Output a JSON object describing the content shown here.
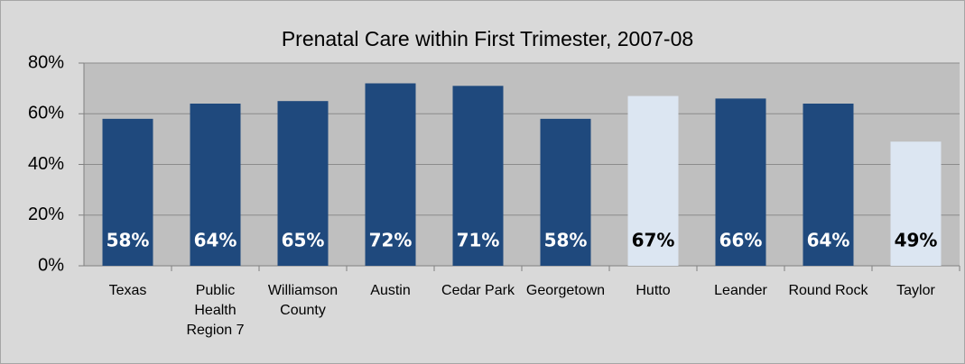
{
  "chart_data": {
    "type": "bar",
    "title": "Prenatal Care within First Trimester, 2007-08",
    "categories": [
      "Texas",
      "Public Health Region 7",
      "Williamson County",
      "Austin",
      "Cedar Park",
      "Georgetown",
      "Hutto",
      "Leander",
      "Round Rock",
      "Taylor"
    ],
    "values": [
      58,
      64,
      65,
      72,
      71,
      58,
      67,
      66,
      64,
      49
    ],
    "value_labels": [
      "58%",
      "64%",
      "65%",
      "72%",
      "71%",
      "58%",
      "67%",
      "66%",
      "64%",
      "49%"
    ],
    "colors": [
      "#1f497d",
      "#1f497d",
      "#1f497d",
      "#1f497d",
      "#1f497d",
      "#1f497d",
      "#dce6f2",
      "#1f497d",
      "#1f497d",
      "#dce6f2"
    ],
    "ylim": [
      0,
      80
    ],
    "yticks": [
      {
        "value": 0,
        "label": "0%"
      },
      {
        "value": 20,
        "label": "20%"
      },
      {
        "value": 40,
        "label": "40%"
      },
      {
        "value": 60,
        "label": "60%"
      },
      {
        "value": 80,
        "label": "80%"
      }
    ],
    "grid": true
  }
}
